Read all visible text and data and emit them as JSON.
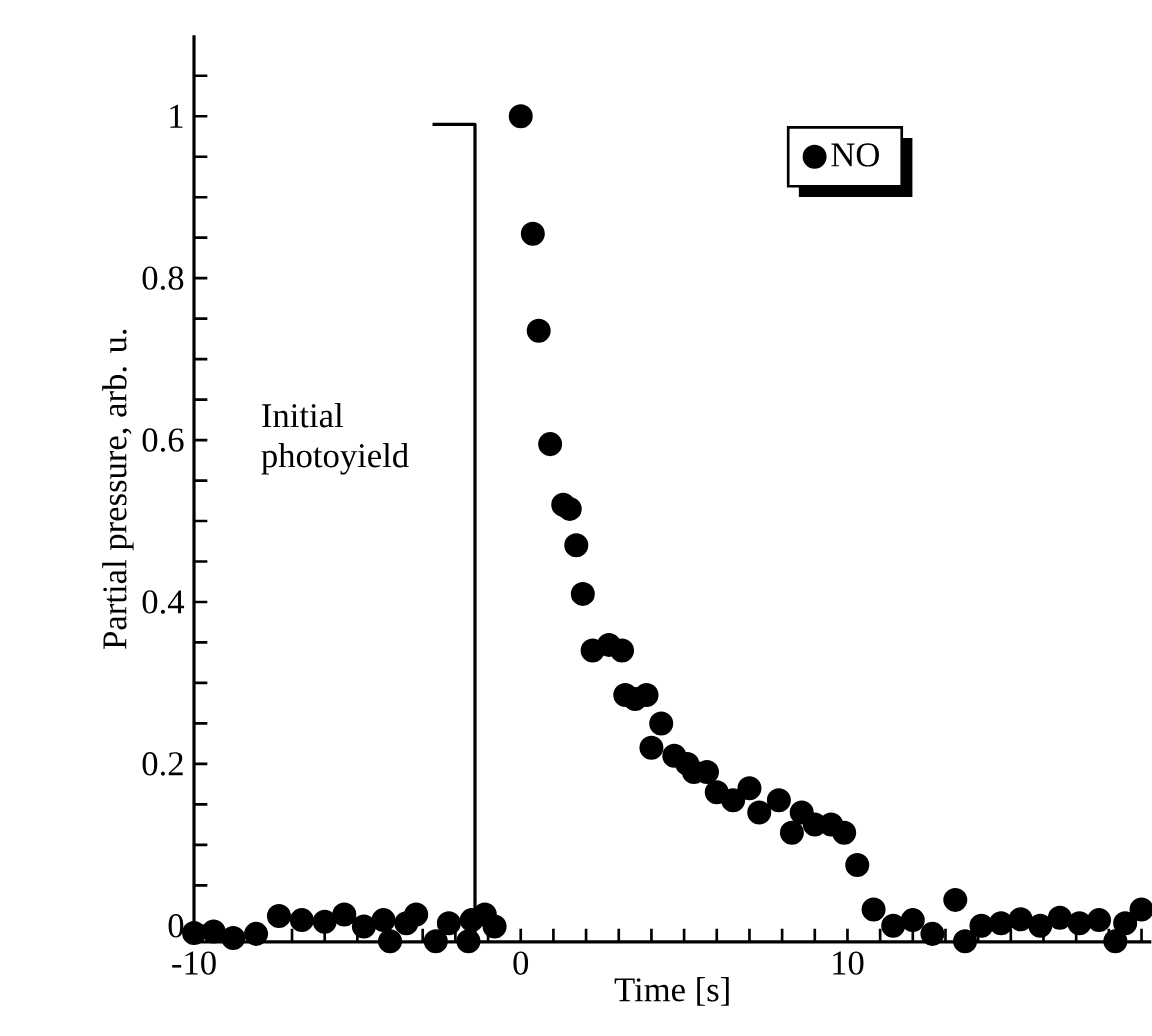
{
  "chart_data": {
    "type": "scatter",
    "xlabel": "Time [s]",
    "ylabel": "Partial pressure, arb. u.",
    "xlim": [
      -10,
      19.3
    ],
    "ylim": [
      -0.02,
      1.1
    ],
    "xticks": [
      -10,
      0,
      10,
      {
        "value": -9,
        "label": null
      },
      {
        "value": -8,
        "label": null
      },
      {
        "value": -7,
        "label": null
      },
      {
        "value": -6,
        "label": null
      },
      {
        "value": -5,
        "label": null
      },
      {
        "value": -4,
        "label": null
      },
      {
        "value": -3,
        "label": null
      },
      {
        "value": -2,
        "label": null
      },
      {
        "value": -1,
        "label": null
      },
      {
        "value": 1,
        "label": null
      },
      {
        "value": 2,
        "label": null
      },
      {
        "value": 3,
        "label": null
      },
      {
        "value": 4,
        "label": null
      },
      {
        "value": 5,
        "label": null
      },
      {
        "value": 6,
        "label": null
      },
      {
        "value": 7,
        "label": null
      },
      {
        "value": 8,
        "label": null
      },
      {
        "value": 9,
        "label": null
      },
      {
        "value": 11,
        "label": null
      },
      {
        "value": 12,
        "label": null
      },
      {
        "value": 13,
        "label": null
      },
      {
        "value": 14,
        "label": null
      },
      {
        "value": 15,
        "label": null
      },
      {
        "value": 16,
        "label": null
      },
      {
        "value": 17,
        "label": null
      },
      {
        "value": 18,
        "label": null
      },
      {
        "value": 19,
        "label": null
      }
    ],
    "yticks": [
      0,
      0.2,
      0.4,
      0.6,
      0.8,
      1,
      {
        "value": 0.05,
        "label": null
      },
      {
        "value": 0.1,
        "label": null
      },
      {
        "value": 0.15,
        "label": null
      },
      {
        "value": 0.25,
        "label": null
      },
      {
        "value": 0.3,
        "label": null
      },
      {
        "value": 0.35,
        "label": null
      },
      {
        "value": 0.45,
        "label": null
      },
      {
        "value": 0.5,
        "label": null
      },
      {
        "value": 0.55,
        "label": null
      },
      {
        "value": 0.65,
        "label": null
      },
      {
        "value": 0.7,
        "label": null
      },
      {
        "value": 0.75,
        "label": null
      },
      {
        "value": 0.85,
        "label": null
      },
      {
        "value": 0.9,
        "label": null
      },
      {
        "value": 0.95,
        "label": null
      },
      {
        "value": 1.05,
        "label": null
      }
    ],
    "legend": "top right",
    "grid": false,
    "series": [
      {
        "name": "NO",
        "color": "#000000",
        "marker": "circle",
        "x": [
          -10,
          -9.4,
          -8.8,
          -8.1,
          -7.4,
          -6.7,
          -6.0,
          -5.4,
          -4.8,
          -4.2,
          -4.0,
          -3.5,
          -3.2,
          -2.6,
          -2.2,
          -1.6,
          -1.5,
          -1.1,
          -0.8,
          0,
          0.37,
          0.55,
          0.9,
          1.3,
          1.5,
          1.7,
          1.9,
          2.2,
          2.7,
          3.1,
          3.2,
          3.5,
          3.85,
          4.0,
          4.3,
          4.7,
          5.1,
          5.3,
          5.7,
          6.0,
          6.5,
          7.0,
          7.3,
          7.9,
          8.3,
          8.6,
          9.0,
          9.5,
          9.9,
          10.3,
          10.8,
          11.4,
          12.0,
          12.6,
          13.3,
          13.6,
          14.1,
          14.7,
          15.3,
          15.9,
          16.5,
          17.1,
          17.7,
          18.2,
          18.5,
          19.0
        ],
        "values": [
          -0.009,
          -0.007,
          -0.015,
          -0.01,
          0.012,
          0.007,
          0.005,
          0.014,
          -0.001,
          0.007,
          -0.019,
          0.003,
          0.014,
          -0.019,
          0.003,
          -0.019,
          0.007,
          0.014,
          -0.001,
          1.0,
          0.855,
          0.735,
          0.595,
          0.52,
          0.515,
          0.47,
          0.41,
          0.34,
          0.347,
          0.34,
          0.285,
          0.28,
          0.285,
          0.22,
          0.25,
          0.21,
          0.2,
          0.19,
          0.19,
          0.165,
          0.155,
          0.17,
          0.14,
          0.155,
          0.115,
          0.14,
          0.125,
          0.125,
          0.115,
          0.075,
          0.02,
          0.0,
          0.007,
          -0.01,
          0.032,
          -0.019,
          0.0,
          0.003,
          0.008,
          0.0,
          0.01,
          0.003,
          0.007,
          -0.019,
          0.003,
          0.02
        ]
      },
      {
        "type": "line",
        "color": "#000000",
        "marker": "none",
        "x": [
          -2.7,
          -1.4,
          -1.4
        ],
        "values": [
          0.99,
          0.99,
          -0.02
        ]
      }
    ],
    "annotations": [
      "Initial photoyield"
    ]
  }
}
